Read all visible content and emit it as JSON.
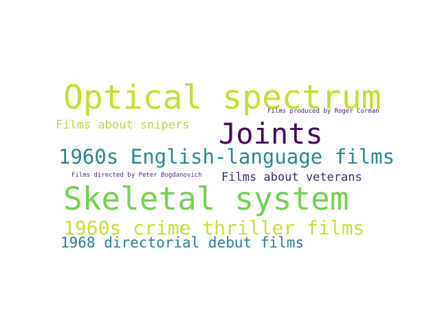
{
  "word_cloud": {
    "background": "#ffffff",
    "words": [
      {
        "text": "Optical spectrum",
        "color": "#c7df2f"
      },
      {
        "text": "Films produced by Roger Corman",
        "color": "#46186b"
      },
      {
        "text": "Films about snipers",
        "color": "#b7d94c"
      },
      {
        "text": "Joints",
        "color": "#450e5a"
      },
      {
        "text": "1960s English-language films",
        "color": "#2a8a8c"
      },
      {
        "text": "Films directed by Peter Bogdanovich",
        "color": "#4a2a7d"
      },
      {
        "text": "Films about veterans",
        "color": "#3b2b6e"
      },
      {
        "text": "Skeletal system",
        "color": "#75d054"
      },
      {
        "text": "1960s crime thriller films",
        "color": "#c9e033"
      },
      {
        "text": "1968 directorial debut films",
        "color": "#2b7f8e"
      }
    ]
  }
}
